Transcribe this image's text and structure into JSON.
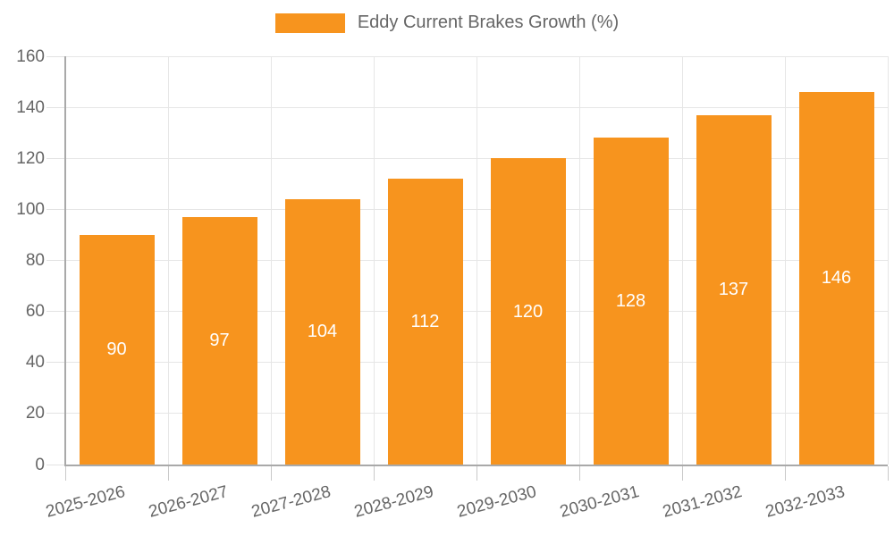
{
  "legend": {
    "label": "Eddy Current Brakes Growth (%)"
  },
  "colors": {
    "bar": "#f7941e",
    "grid": "#e6e6e6",
    "axis": "#a9a9a9",
    "axis_text": "#666666",
    "bar_label_text": "#ffffff"
  },
  "chart_data": {
    "type": "bar",
    "title": "",
    "xlabel": "",
    "ylabel": "",
    "categories": [
      "2025-2026",
      "2026-2027",
      "2027-2028",
      "2028-2029",
      "2029-2030",
      "2030-2031",
      "2031-2032",
      "2032-2033"
    ],
    "series": [
      {
        "name": "Eddy Current Brakes Growth (%)",
        "color": "#f7941e",
        "values": [
          90,
          97,
          104,
          112,
          120,
          128,
          137,
          146
        ]
      }
    ],
    "data_labels": [
      "90",
      "97",
      "104",
      "112",
      "120",
      "128",
      "137",
      "146"
    ],
    "data_label_position": "inside-middle",
    "ylim": [
      0,
      160
    ],
    "yticks": [
      0,
      20,
      40,
      60,
      80,
      100,
      120,
      140,
      160
    ],
    "grid": true,
    "legend_position": "top-center",
    "x_label_rotation_deg": -15
  }
}
